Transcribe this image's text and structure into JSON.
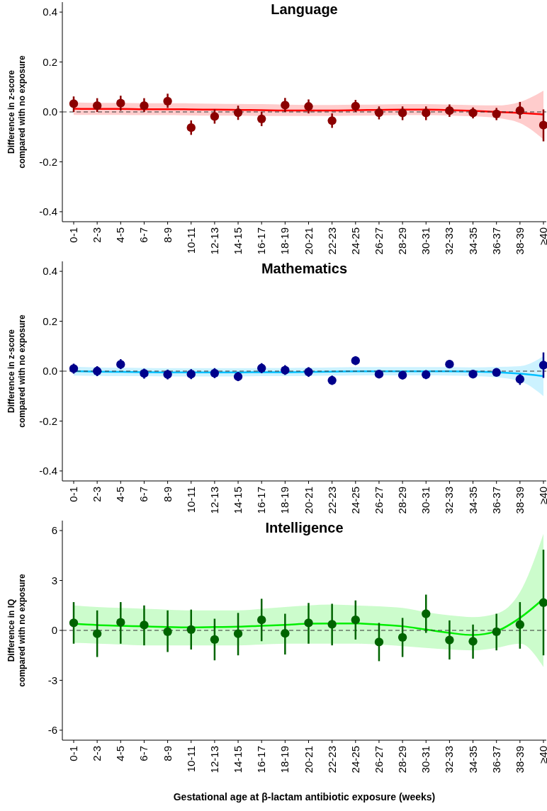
{
  "chart_data": [
    {
      "type": "scatter",
      "title": "Language",
      "ylabel": "Difference in z-score\ncompared with no exposure",
      "categories": [
        "0-1",
        "2-3",
        "4-5",
        "6-7",
        "8-9",
        "10-11",
        "12-13",
        "14-15",
        "16-17",
        "18-19",
        "20-21",
        "22-23",
        "24-25",
        "26-27",
        "28-29",
        "30-31",
        "32-33",
        "34-35",
        "36-37",
        "38-39",
        "≥40"
      ],
      "ylim": [
        -0.44,
        0.44
      ],
      "yticks": [
        {
          "value": -0.4,
          "label": "-0.4"
        },
        {
          "value": -0.2,
          "label": "-0.2"
        },
        {
          "value": 0,
          "label": "0.0"
        },
        0.2,
        0.4
      ],
      "grid": false,
      "ref_lines": [
        {
          "axis": "y",
          "value": 0,
          "line_style": "dashed",
          "color": "#333333"
        }
      ],
      "series": [
        {
          "type": "line",
          "marker": "none",
          "color": "#ff0000",
          "values": [
            0.013,
            0.012,
            0.012,
            0.011,
            0.011,
            0.01,
            0.009,
            0.008,
            0.007,
            0.006,
            0.006,
            0.006,
            0.007,
            0.008,
            0.009,
            0.009,
            0.007,
            0.004,
            0.0,
            -0.004,
            -0.01
          ],
          "lower": [
            -0.012,
            -0.012,
            -0.012,
            -0.013,
            -0.013,
            -0.014,
            -0.015,
            -0.015,
            -0.016,
            -0.016,
            -0.016,
            -0.016,
            -0.015,
            -0.014,
            -0.013,
            -0.013,
            -0.015,
            -0.018,
            -0.024,
            -0.045,
            -0.11
          ],
          "upper": [
            0.038,
            0.036,
            0.036,
            0.035,
            0.035,
            0.034,
            0.033,
            0.032,
            0.031,
            0.029,
            0.028,
            0.028,
            0.029,
            0.03,
            0.031,
            0.031,
            0.029,
            0.027,
            0.026,
            0.04,
            0.085
          ]
        },
        {
          "type": "scatter",
          "marker": "circle",
          "color": "#8b0000",
          "values": [
            0.033,
            0.025,
            0.035,
            0.025,
            0.043,
            -0.063,
            -0.018,
            -0.003,
            -0.028,
            0.027,
            0.022,
            -0.035,
            0.023,
            -0.003,
            -0.004,
            -0.004,
            0.005,
            -0.004,
            -0.008,
            0.005,
            -0.053
          ],
          "errors": [
            [
              0.0,
              0.062
            ],
            [
              0.0,
              0.055
            ],
            [
              0.005,
              0.065
            ],
            [
              0.0,
              0.055
            ],
            [
              0.016,
              0.073
            ],
            [
              -0.092,
              -0.034
            ],
            [
              -0.047,
              0.01
            ],
            [
              -0.032,
              0.025
            ],
            [
              -0.057,
              0.0
            ],
            [
              0.0,
              0.056
            ],
            [
              -0.006,
              0.05
            ],
            [
              -0.064,
              -0.006
            ],
            [
              0.0,
              0.048
            ],
            [
              -0.03,
              0.022
            ],
            [
              -0.033,
              0.022
            ],
            [
              -0.033,
              0.022
            ],
            [
              -0.02,
              0.03
            ],
            [
              -0.026,
              0.018
            ],
            [
              -0.033,
              0.016
            ],
            [
              -0.027,
              0.04
            ],
            [
              -0.118,
              0.01
            ]
          ]
        }
      ]
    },
    {
      "type": "scatter",
      "title": "Mathematics",
      "ylabel": "Difference in z-score\ncompared with no exposure",
      "categories": [
        "0-1",
        "2-3",
        "4-5",
        "6-7",
        "8-9",
        "10-11",
        "12-13",
        "14-15",
        "16-17",
        "18-19",
        "20-21",
        "22-23",
        "24-25",
        "26-27",
        "28-29",
        "30-31",
        "32-33",
        "34-35",
        "36-37",
        "38-39",
        "≥40"
      ],
      "ylim": [
        -0.44,
        0.44
      ],
      "yticks": [
        {
          "value": -0.4,
          "label": "-0.4"
        },
        {
          "value": -0.2,
          "label": "-0.2"
        },
        {
          "value": 0,
          "label": "0.0"
        },
        0.2,
        0.4
      ],
      "grid": false,
      "ref_lines": [
        {
          "axis": "y",
          "value": 0,
          "line_style": "dashed",
          "color": "#333333"
        }
      ],
      "series": [
        {
          "type": "line",
          "marker": "none",
          "color": "#00bfff",
          "values": [
            0.0,
            -0.002,
            -0.003,
            -0.004,
            -0.005,
            -0.005,
            -0.005,
            -0.005,
            -0.004,
            -0.004,
            -0.003,
            -0.002,
            -0.001,
            -0.001,
            -0.001,
            -0.001,
            -0.001,
            -0.002,
            -0.004,
            -0.01,
            -0.02
          ],
          "lower": [
            -0.018,
            -0.019,
            -0.02,
            -0.02,
            -0.021,
            -0.021,
            -0.021,
            -0.021,
            -0.02,
            -0.02,
            -0.019,
            -0.018,
            -0.017,
            -0.017,
            -0.017,
            -0.017,
            -0.018,
            -0.02,
            -0.025,
            -0.04,
            -0.1
          ],
          "upper": [
            0.018,
            0.015,
            0.014,
            0.013,
            0.012,
            0.012,
            0.012,
            0.012,
            0.013,
            0.013,
            0.014,
            0.015,
            0.016,
            0.016,
            0.016,
            0.016,
            0.016,
            0.015,
            0.017,
            0.02,
            0.06
          ]
        },
        {
          "type": "scatter",
          "marker": "circle",
          "color": "#00008b",
          "values": [
            0.01,
            0.0,
            0.027,
            -0.009,
            -0.013,
            -0.012,
            -0.008,
            -0.022,
            0.012,
            0.004,
            -0.003,
            -0.037,
            0.042,
            -0.012,
            -0.016,
            -0.014,
            0.028,
            -0.012,
            -0.005,
            -0.032,
            0.024
          ],
          "errors": [
            [
              -0.01,
              0.03
            ],
            [
              -0.02,
              0.02
            ],
            [
              0.008,
              0.048
            ],
            [
              -0.03,
              0.01
            ],
            [
              -0.033,
              0.006
            ],
            [
              -0.032,
              0.008
            ],
            [
              -0.028,
              0.012
            ],
            [
              -0.04,
              -0.003
            ],
            [
              -0.008,
              0.032
            ],
            [
              -0.015,
              0.024
            ],
            [
              -0.023,
              0.016
            ],
            [
              -0.055,
              -0.018
            ],
            [
              0.025,
              0.06
            ],
            [
              -0.027,
              0.003
            ],
            [
              -0.033,
              0.0
            ],
            [
              -0.032,
              0.004
            ],
            [
              0.012,
              0.045
            ],
            [
              -0.022,
              -0.002
            ],
            [
              -0.017,
              0.006
            ],
            [
              -0.055,
              -0.012
            ],
            [
              -0.027,
              0.075
            ]
          ]
        }
      ]
    },
    {
      "type": "scatter",
      "title": "Intelligence",
      "ylabel": "Difference in IQ\ncompared with no exposure",
      "xlabel": "Gestational age at β-lactam antibiotic exposure (weeks)",
      "categories": [
        "0-1",
        "2-3",
        "4-5",
        "6-7",
        "8-9",
        "10-11",
        "12-13",
        "14-15",
        "16-17",
        "18-19",
        "20-21",
        "22-23",
        "24-25",
        "26-27",
        "28-29",
        "30-31",
        "32-33",
        "34-35",
        "36-37",
        "38-39",
        "≥40"
      ],
      "ylim": [
        -6.6,
        6.6
      ],
      "yticks": [
        -6,
        -3,
        0,
        3,
        6
      ],
      "grid": false,
      "ref_lines": [
        {
          "axis": "y",
          "value": 0,
          "line_style": "dashed",
          "color": "#333333"
        }
      ],
      "series": [
        {
          "type": "line",
          "marker": "none",
          "color": "#00ee00",
          "values": [
            0.4,
            0.32,
            0.28,
            0.24,
            0.2,
            0.18,
            0.2,
            0.22,
            0.28,
            0.33,
            0.4,
            0.42,
            0.42,
            0.35,
            0.25,
            0.05,
            -0.15,
            -0.28,
            -0.05,
            0.75,
            1.9
          ],
          "lower": [
            -0.75,
            -0.8,
            -0.85,
            -0.9,
            -0.9,
            -0.9,
            -0.9,
            -0.9,
            -0.85,
            -0.8,
            -0.8,
            -0.8,
            -0.8,
            -0.85,
            -0.95,
            -1.05,
            -1.15,
            -1.2,
            -1.05,
            -0.8,
            -2.2
          ],
          "upper": [
            1.5,
            1.4,
            1.35,
            1.3,
            1.25,
            1.2,
            1.2,
            1.2,
            1.3,
            1.4,
            1.5,
            1.55,
            1.5,
            1.45,
            1.35,
            1.1,
            0.9,
            0.8,
            1.0,
            2.3,
            5.8
          ]
        },
        {
          "type": "scatter",
          "marker": "circle",
          "color": "#006400",
          "values": [
            0.45,
            -0.2,
            0.48,
            0.32,
            -0.08,
            0.05,
            -0.55,
            -0.2,
            0.63,
            -0.18,
            0.45,
            0.37,
            0.63,
            -0.7,
            -0.42,
            1.0,
            -0.58,
            -0.66,
            -0.08,
            0.35,
            1.67
          ],
          "errors": [
            [
              -0.8,
              1.7
            ],
            [
              -1.6,
              1.2
            ],
            [
              -0.8,
              1.7
            ],
            [
              -0.9,
              1.5
            ],
            [
              -1.3,
              1.2
            ],
            [
              -1.15,
              1.25
            ],
            [
              -1.8,
              0.7
            ],
            [
              -1.5,
              1.05
            ],
            [
              -0.65,
              1.9
            ],
            [
              -1.45,
              1.0
            ],
            [
              -0.8,
              1.65
            ],
            [
              -0.9,
              1.6
            ],
            [
              -0.55,
              1.8
            ],
            [
              -1.85,
              0.45
            ],
            [
              -1.6,
              0.75
            ],
            [
              -0.15,
              2.15
            ],
            [
              -1.75,
              0.6
            ],
            [
              -1.7,
              0.35
            ],
            [
              -1.2,
              1.0
            ],
            [
              -1.1,
              1.7
            ],
            [
              -1.5,
              4.85
            ]
          ]
        }
      ]
    }
  ]
}
